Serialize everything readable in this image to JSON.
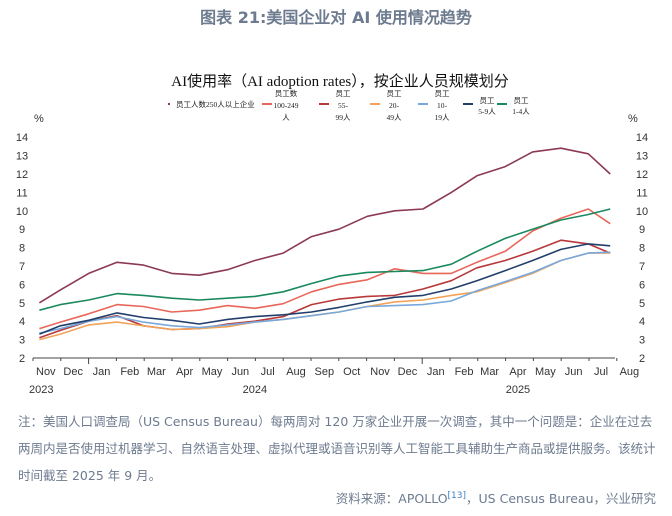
{
  "figure_title": "图表 21:美国企业对 AI 使用情况趋势",
  "note": "注：美国人口调查局（US Census Bureau）每两周对 120 万家企业开展一次调查，其中一个问题是：企业在过去两周内是否使用过机器学习、自然语言处理、虚拟代理或语音识别等人工智能工具辅助生产商品或提供服务。该统计时间截至 2025 年 9 月。",
  "source_prefix": "资料来源：APOLLO",
  "source_ref": "[13]",
  "source_suffix": "，US Census Bureau，兴业研究",
  "chart_data": {
    "type": "line",
    "title": "AI使用率（AI adoption rates），按企业人员规模划分",
    "ylabel_left": "%",
    "ylabel_right": "%",
    "ylim": [
      2,
      14
    ],
    "yticks": [
      "2",
      "3",
      "4",
      "5",
      "6",
      "7",
      "8",
      "9",
      "10",
      "11",
      "12",
      "13",
      "14"
    ],
    "xticks": [
      {
        "label": "Nov",
        "date": "2023-11-15"
      },
      {
        "label": "Dec",
        "date": "2023-12-15"
      },
      {
        "label": "Jan",
        "date": "2024-01-15"
      },
      {
        "label": "Feb",
        "date": "2024-02-15"
      },
      {
        "label": "Mar",
        "date": "2024-03-15"
      },
      {
        "label": "Apr",
        "date": "2024-04-15"
      },
      {
        "label": "May",
        "date": "2024-05-15"
      },
      {
        "label": "Jun",
        "date": "2024-06-15"
      },
      {
        "label": "Jul",
        "date": "2024-07-15"
      },
      {
        "label": "Aug",
        "date": "2024-08-15"
      },
      {
        "label": "Sep",
        "date": "2024-09-15"
      },
      {
        "label": "Oct",
        "date": "2024-10-15"
      },
      {
        "label": "Nov",
        "date": "2024-11-15"
      },
      {
        "label": "Dec",
        "date": "2024-12-15"
      },
      {
        "label": "Jan",
        "date": "2025-01-15"
      },
      {
        "label": "Feb",
        "date": "2025-02-15"
      },
      {
        "label": "Mar",
        "date": "2025-03-15"
      },
      {
        "label": "Apr",
        "date": "2025-04-15"
      },
      {
        "label": "May",
        "date": "2025-05-15"
      },
      {
        "label": "Jun",
        "date": "2025-06-15"
      },
      {
        "label": "Jul",
        "date": "2025-07-15"
      },
      {
        "label": "Aug",
        "date": "2025-08-15"
      }
    ],
    "year_labels": [
      {
        "label": "2023",
        "date": "2023-11-10"
      },
      {
        "label": "2024",
        "date": "2024-07-01"
      },
      {
        "label": "2025",
        "date": "2025-04-15"
      }
    ],
    "x": [
      "2023-11-08",
      "2023-12-01",
      "2024-01-01",
      "2024-02-01",
      "2024-03-01",
      "2024-04-01",
      "2024-05-01",
      "2024-06-01",
      "2024-07-01",
      "2024-08-01",
      "2024-09-01",
      "2024-10-01",
      "2024-11-01",
      "2024-12-01",
      "2025-01-01",
      "2025-02-01",
      "2025-03-01",
      "2025-04-01",
      "2025-05-01",
      "2025-06-01",
      "2025-07-01",
      "2025-07-25"
    ],
    "series": [
      {
        "name": "员工人数250人以上企业",
        "color": "#8b3a52",
        "values": [
          5.0,
          5.7,
          6.6,
          7.2,
          7.05,
          6.6,
          6.5,
          6.8,
          7.3,
          7.7,
          8.6,
          9.0,
          9.7,
          10.0,
          10.1,
          11.0,
          11.9,
          12.4,
          13.2,
          13.4,
          13.1,
          12.0
        ]
      },
      {
        "name": "员工数100-249人",
        "color": "#e8675a",
        "values": [
          3.6,
          3.95,
          4.4,
          4.9,
          4.8,
          4.5,
          4.6,
          4.85,
          4.7,
          4.95,
          5.6,
          6.0,
          6.25,
          6.85,
          6.6,
          6.6,
          7.2,
          7.8,
          8.9,
          9.6,
          10.1,
          9.3
        ]
      },
      {
        "name": "员工55-99人",
        "color": "#b8393a",
        "values": [
          3.1,
          3.5,
          4.0,
          4.3,
          3.75,
          3.55,
          3.6,
          3.85,
          4.0,
          4.25,
          4.9,
          5.2,
          5.35,
          5.4,
          5.75,
          6.2,
          6.9,
          7.3,
          7.8,
          8.4,
          8.2,
          7.7
        ]
      },
      {
        "name": "员工20-49人",
        "color": "#f2a35a",
        "values": [
          3.0,
          3.3,
          3.8,
          3.95,
          3.75,
          3.55,
          3.6,
          3.7,
          3.95,
          4.1,
          4.3,
          4.5,
          4.8,
          5.05,
          5.15,
          5.4,
          5.6,
          6.1,
          6.6,
          7.3,
          7.7,
          7.7
        ]
      },
      {
        "name": "员工10-19人",
        "color": "#78a9db",
        "values": [
          3.35,
          3.6,
          4.0,
          4.25,
          3.95,
          3.75,
          3.65,
          3.8,
          3.95,
          4.1,
          4.3,
          4.5,
          4.8,
          4.85,
          4.9,
          5.1,
          5.65,
          6.15,
          6.65,
          7.3,
          7.7,
          7.75
        ]
      },
      {
        "name": "员工5-9人",
        "color": "#213f6b",
        "values": [
          3.3,
          3.75,
          4.05,
          4.45,
          4.2,
          4.05,
          3.85,
          4.1,
          4.25,
          4.35,
          4.5,
          4.75,
          5.05,
          5.3,
          5.4,
          5.75,
          6.2,
          6.75,
          7.3,
          7.9,
          8.2,
          8.1
        ]
      },
      {
        "name": "员工1-4人",
        "color": "#1a8a5e",
        "values": [
          4.6,
          4.9,
          5.15,
          5.5,
          5.4,
          5.25,
          5.15,
          5.25,
          5.35,
          5.6,
          6.05,
          6.45,
          6.65,
          6.7,
          6.75,
          7.1,
          7.8,
          8.5,
          9.0,
          9.5,
          9.8,
          10.1
        ]
      }
    ],
    "legend": [
      {
        "lines": [
          "员工人数250人以上企业"
        ]
      },
      {
        "lines": [
          "员工数",
          "100-249",
          "人"
        ]
      },
      {
        "lines": [
          "员工",
          "55-",
          "99人"
        ]
      },
      {
        "lines": [
          "员工",
          "20-",
          "49人"
        ]
      },
      {
        "lines": [
          "员工",
          "10-",
          "19人"
        ]
      },
      {
        "lines": [
          "员工",
          "5-9人"
        ]
      },
      {
        "lines": [
          "员工",
          "1-4人"
        ]
      }
    ],
    "legend_position": "top",
    "grid": false
  }
}
